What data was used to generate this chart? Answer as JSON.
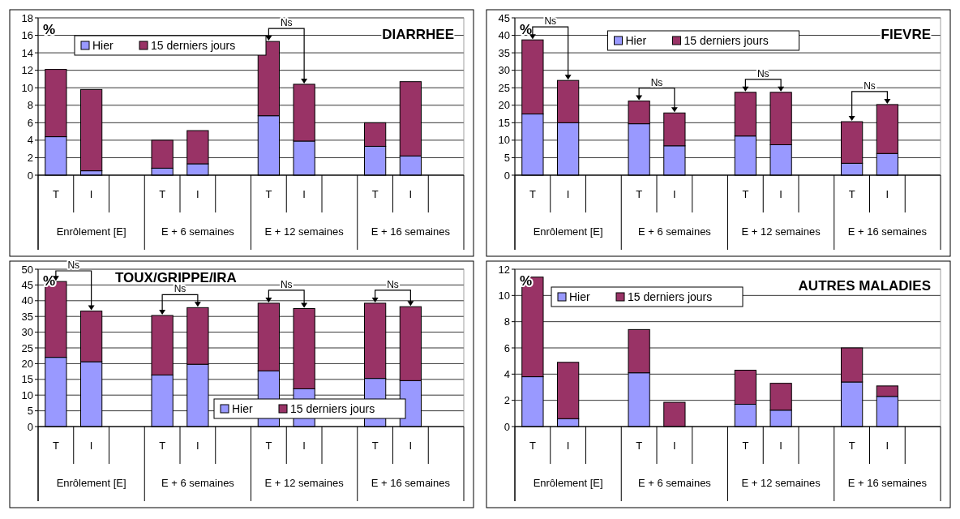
{
  "chart_data": [
    {
      "type": "bar",
      "title": "DIARRHEE",
      "ylabel": "%",
      "stacked": true,
      "grid": "y",
      "legend": "top left",
      "categories": [
        "T",
        "I",
        null,
        "T",
        "I",
        null,
        "T",
        "I",
        null,
        "T",
        "I",
        null
      ],
      "series": [
        {
          "name": "Hier",
          "color": "#9999ff",
          "values": [
            4.4,
            0.5,
            null,
            0.8,
            1.3,
            null,
            6.8,
            3.9,
            null,
            3.3,
            2.2,
            null
          ]
        },
        {
          "name": "15 derniers jours",
          "color": "#993366",
          "values": [
            7.7,
            9.3,
            null,
            3.2,
            3.8,
            null,
            8.5,
            6.5,
            null,
            2.7,
            8.5,
            null
          ]
        }
      ],
      "ylim": [
        0,
        18
      ],
      "yticks": [
        0,
        2,
        4,
        6,
        8,
        10,
        12,
        14,
        16,
        18
      ],
      "annotations": [
        "Enrôlement [E]",
        "E + 6 semaines",
        "E + 12 semaines",
        "E + 16 semaines",
        "Ns"
      ]
    },
    {
      "type": "bar",
      "title": "FIEVRE",
      "ylabel": "%",
      "stacked": true,
      "grid": "y",
      "legend": "top",
      "categories": [
        "T",
        "I",
        null,
        "T",
        "I",
        null,
        "T",
        "I",
        null,
        "T",
        "I",
        null
      ],
      "series": [
        {
          "name": "Hier",
          "color": "#9999ff",
          "values": [
            17.5,
            15,
            null,
            14.7,
            8.4,
            null,
            11.2,
            8.7,
            null,
            3.4,
            6.2,
            null
          ]
        },
        {
          "name": "15 derniers jours",
          "color": "#993366",
          "values": [
            21.2,
            12.1,
            null,
            6.5,
            9.4,
            null,
            12.5,
            15,
            null,
            11.9,
            14,
            null
          ]
        }
      ],
      "ylim": [
        0,
        45
      ],
      "yticks": [
        0,
        5,
        10,
        15,
        20,
        25,
        30,
        35,
        40,
        45
      ],
      "annotations": [
        "Enrôlement [E]",
        "E + 6 semaines",
        "E + 12 semaines",
        "E + 16 semaines",
        "Ns",
        "Ns",
        "Ns",
        "Ns"
      ]
    },
    {
      "type": "bar",
      "title": "TOUX/GRIPPE/IRA",
      "ylabel": "%",
      "stacked": true,
      "grid": "y",
      "legend": "bottom right",
      "categories": [
        "T",
        "I",
        null,
        "T",
        "I",
        null,
        "T",
        "I",
        null,
        "T",
        "I",
        null
      ],
      "series": [
        {
          "name": "Hier",
          "color": "#9999ff",
          "values": [
            22,
            20.6,
            null,
            16.4,
            19.8,
            null,
            17.7,
            12,
            null,
            15.3,
            14.6,
            null
          ]
        },
        {
          "name": "15 derniers jours",
          "color": "#993366",
          "values": [
            24.1,
            16.1,
            null,
            18.9,
            18,
            null,
            21.5,
            25.5,
            null,
            23.9,
            23.5,
            null
          ]
        }
      ],
      "ylim": [
        0,
        50
      ],
      "yticks": [
        0,
        5,
        10,
        15,
        20,
        25,
        30,
        35,
        40,
        45,
        50
      ],
      "annotations": [
        "Enrôlement [E]",
        "E + 6 semaines",
        "E + 12 semaines",
        "E + 16 semaines",
        "Ns",
        "Ns",
        "Ns",
        "Ns"
      ]
    },
    {
      "type": "bar",
      "title": "AUTRES MALADIES",
      "ylabel": "%",
      "stacked": true,
      "grid": "y",
      "legend": "top left",
      "categories": [
        "T",
        "I",
        null,
        "T",
        "I",
        null,
        "T",
        "I",
        null,
        "T",
        "I",
        null
      ],
      "series": [
        {
          "name": "Hier",
          "color": "#9999ff",
          "values": [
            3.8,
            0.6,
            null,
            4.1,
            0,
            null,
            1.7,
            1.25,
            null,
            3.4,
            2.3,
            null
          ]
        },
        {
          "name": "15 derniers jours",
          "color": "#993366",
          "values": [
            7.6,
            4.3,
            null,
            3.3,
            1.85,
            null,
            2.6,
            2.05,
            null,
            2.6,
            0.8,
            null
          ]
        }
      ],
      "ylim": [
        0,
        12
      ],
      "yticks": [
        0,
        2,
        4,
        6,
        8,
        10,
        12
      ],
      "annotations": [
        "Enrôlement [E]",
        "E + 6 semaines",
        "E + 12 semaines",
        "E + 16 semaines"
      ]
    }
  ]
}
